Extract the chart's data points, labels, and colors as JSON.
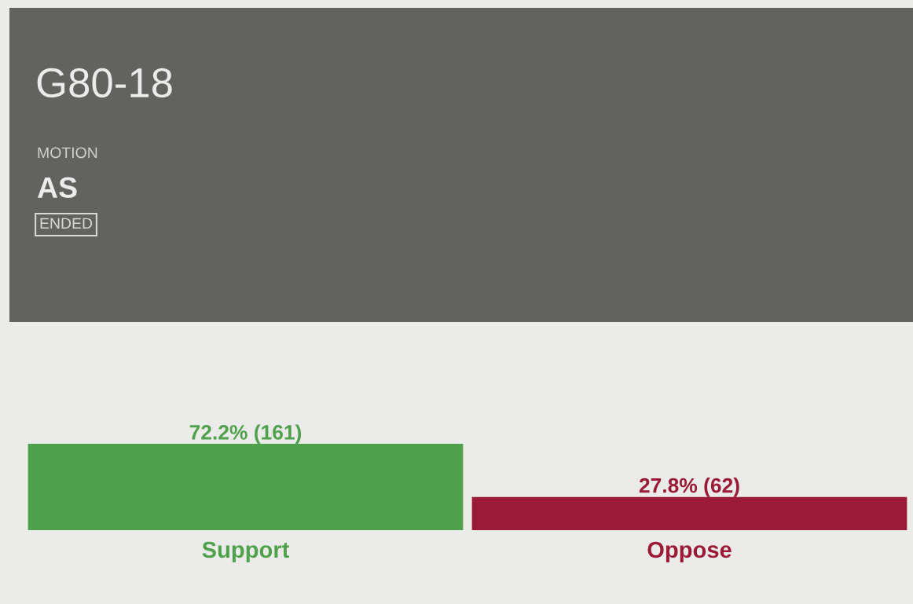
{
  "chart_data": {
    "type": "bar",
    "title": "G80-18",
    "subtitle": "MOTION",
    "annotations": [
      "AS",
      "ENDED"
    ],
    "categories": [
      "Support",
      "Oppose"
    ],
    "values": [
      72.2,
      27.8
    ],
    "colors": [
      "#4fa24b",
      "#9b1b36"
    ],
    "value_labels": [
      "72.2% (161)",
      "27.8% (62)"
    ],
    "tick_labels": "x",
    "grid": false,
    "legend": false
  }
}
